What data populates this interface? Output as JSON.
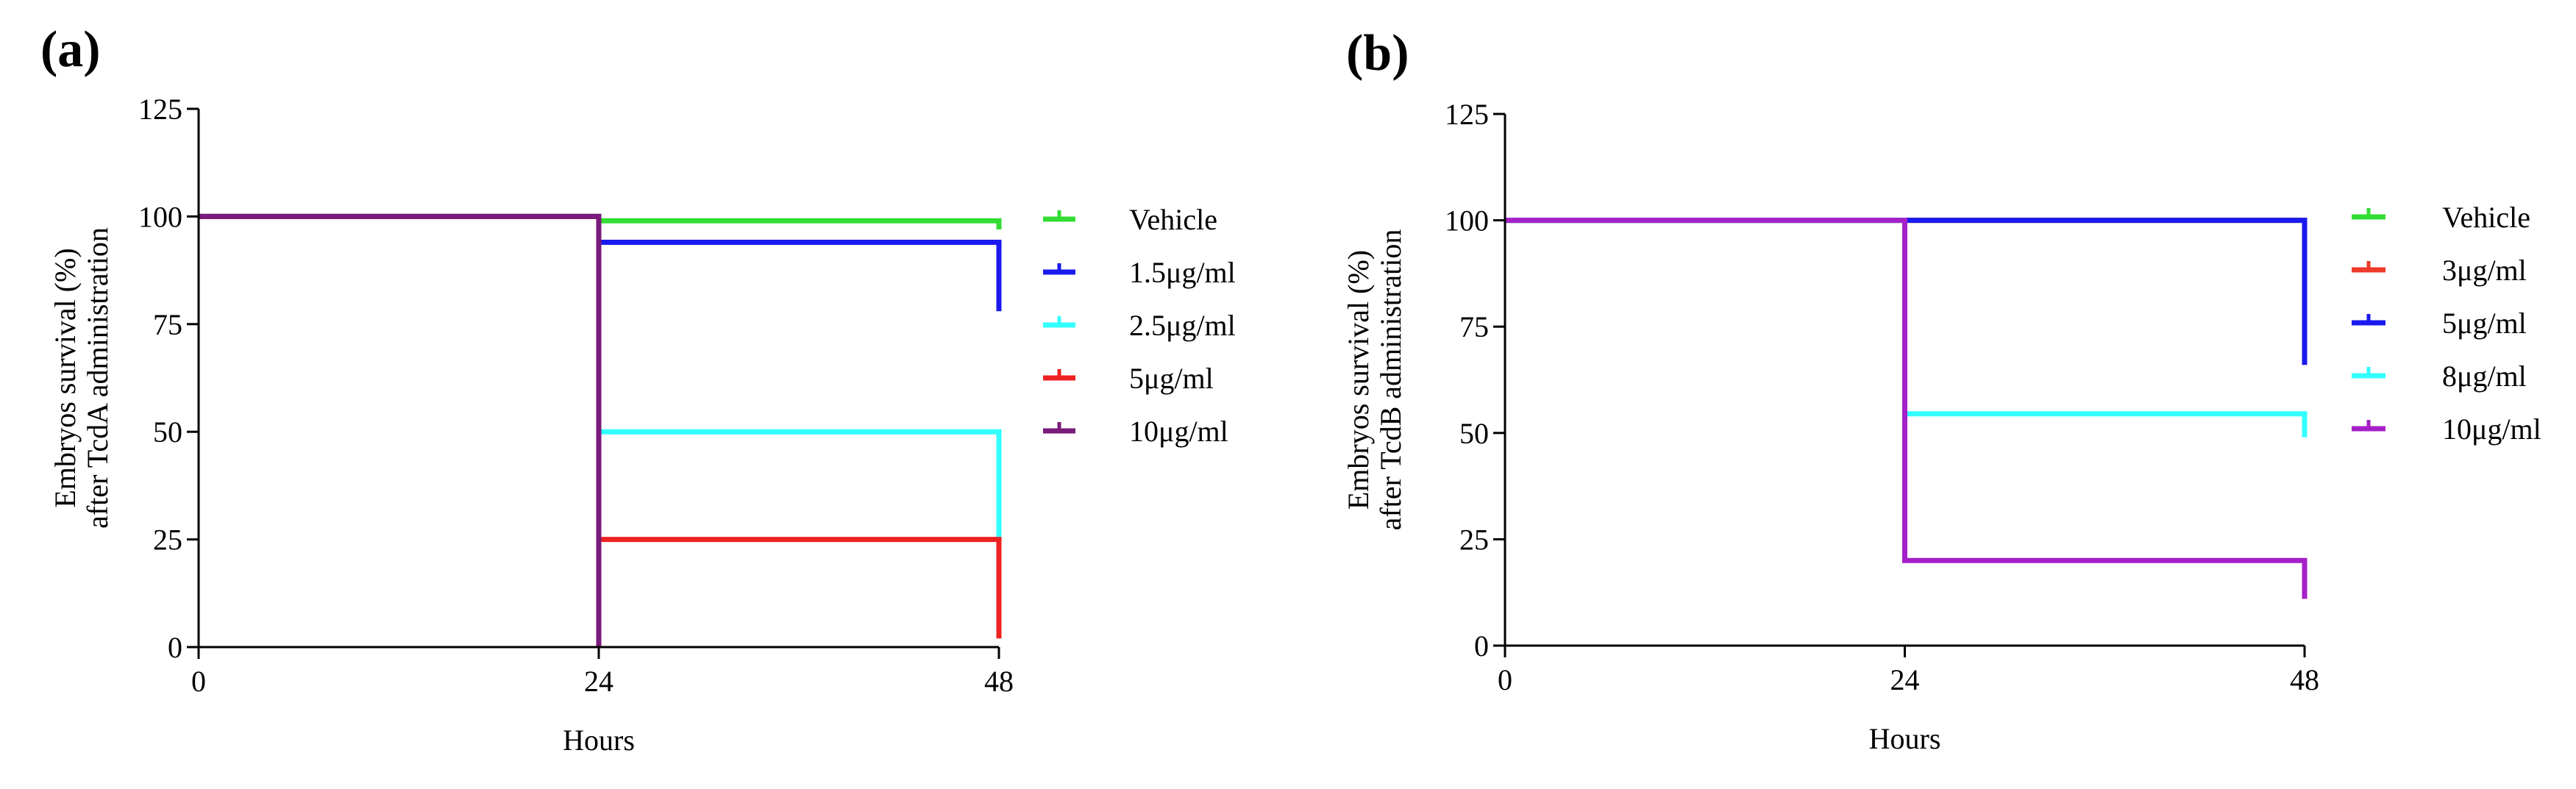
{
  "chart_data": [
    {
      "type": "line",
      "subtype": "kaplan-meier-survival",
      "panel_label": "(a)",
      "xlabel": "Hours",
      "ylabel_lines": [
        "Embryos survival (%)",
        "after TcdA  administration"
      ],
      "xlim": [
        0,
        48
      ],
      "ylim": [
        0,
        125
      ],
      "xticks": [
        0,
        24,
        48
      ],
      "yticks": [
        0,
        25,
        50,
        75,
        100,
        125
      ],
      "grid": false,
      "legend_position": "right",
      "series": [
        {
          "name": "Vehicle",
          "color": "#33dd33",
          "x": [
            0,
            24,
            24,
            48,
            48
          ],
          "y": [
            100,
            100,
            99,
            99,
            97
          ]
        },
        {
          "name": "1.5μg/ml",
          "color": "#1a1aee",
          "x": [
            0,
            24,
            24,
            48,
            48
          ],
          "y": [
            100,
            100,
            94,
            94,
            78
          ]
        },
        {
          "name": "2.5μg/ml",
          "color": "#33ffff",
          "x": [
            0,
            24,
            24,
            48,
            48
          ],
          "y": [
            100,
            100,
            50,
            50,
            25
          ]
        },
        {
          "name": "5μg/ml",
          "color": "#ee2222",
          "x": [
            0,
            24,
            24,
            48,
            48
          ],
          "y": [
            100,
            100,
            25,
            25,
            2
          ]
        },
        {
          "name": "10μg/ml",
          "color": "#7a1a7a",
          "x": [
            0,
            24,
            24
          ],
          "y": [
            100,
            100,
            0
          ]
        }
      ]
    },
    {
      "type": "line",
      "subtype": "kaplan-meier-survival",
      "panel_label": "(b)",
      "xlabel": "Hours",
      "ylabel_lines": [
        "Embryos survival (%)",
        "after TcdB administration"
      ],
      "xlim": [
        0,
        48
      ],
      "ylim": [
        0,
        125
      ],
      "xticks": [
        0,
        24,
        48
      ],
      "yticks": [
        0,
        25,
        50,
        75,
        100,
        125
      ],
      "grid": false,
      "legend_position": "right",
      "series": [
        {
          "name": "Vehicle",
          "color": "#33dd33",
          "x": [
            0,
            48,
            48
          ],
          "y": [
            100,
            100,
            99
          ]
        },
        {
          "name": "3μg/ml",
          "color": "#ee3a2a",
          "x": [
            0,
            48,
            48
          ],
          "y": [
            100,
            100,
            80
          ]
        },
        {
          "name": "5μg/ml",
          "color": "#1a1aee",
          "x": [
            0,
            48,
            48
          ],
          "y": [
            100,
            100,
            66
          ]
        },
        {
          "name": "8μg/ml",
          "color": "#33ffff",
          "x": [
            0,
            24,
            24,
            48,
            48
          ],
          "y": [
            100,
            100,
            54.5,
            54.5,
            49
          ]
        },
        {
          "name": "10μg/ml",
          "color": "#a520c8",
          "x": [
            0,
            24,
            24,
            48,
            48
          ],
          "y": [
            100,
            100,
            20,
            20,
            11
          ]
        }
      ]
    }
  ]
}
